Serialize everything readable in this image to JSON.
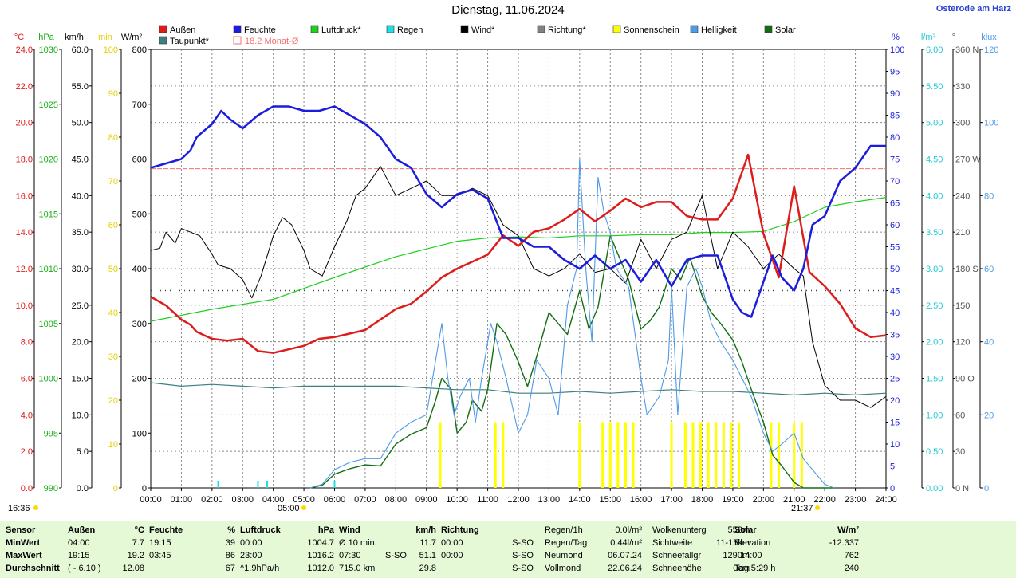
{
  "title": "Dienstag, 11.06.2024",
  "location": "Osterode am Harz",
  "time_marks": {
    "sunrise_label": "05:00",
    "sunset_label": "21:37",
    "now_label": "16:36"
  },
  "legend": [
    {
      "label": "Außen",
      "color": "#dd1c1c"
    },
    {
      "label": "Feuchte",
      "color": "#1c1cdd"
    },
    {
      "label": "Luftdruck*",
      "color": "#1ecf1e"
    },
    {
      "label": "Regen",
      "color": "#1ee0e0"
    },
    {
      "label": "Wind*",
      "color": "#000000"
    },
    {
      "label": "Richtung*",
      "color": "#808080"
    },
    {
      "label": "Sonnenschein",
      "color": "#ffff00"
    },
    {
      "label": "Helligkeit",
      "color": "#4f9ae6"
    },
    {
      "label": "Solar",
      "color": "#126e12"
    },
    {
      "label": "Taupunkt*",
      "color": "#3f7f7f"
    },
    {
      "label": "18.2 Monat-Ø",
      "color": "#f07070"
    }
  ],
  "axis_units": {
    "temp": "°C",
    "press": "hPa",
    "wind": "km/h",
    "min": "min",
    "solar": "W/m²",
    "hum": "%",
    "rain": "l/m²",
    "dir": "°",
    "lux": "klux"
  },
  "chart_data": {
    "type": "line",
    "title": "Dienstag, 11.06.2024",
    "x_label": "",
    "x_ticks": [
      "00:00",
      "01:00",
      "02:00",
      "03:00",
      "04:00",
      "05:00",
      "06:00",
      "07:00",
      "08:00",
      "09:00",
      "10:00",
      "11:00",
      "12:00",
      "13:00",
      "14:00",
      "15:00",
      "16:00",
      "17:00",
      "18:00",
      "19:00",
      "20:00",
      "21:00",
      "22:00",
      "23:00",
      "24:00"
    ],
    "x_range_hours": [
      0,
      24
    ],
    "grid": true,
    "y_axes": {
      "temp": {
        "unit": "°C",
        "range": [
          0,
          25
        ],
        "ticks": [
          "0.0",
          "2.0",
          "4.0",
          "6.0",
          "8.0",
          "10.0",
          "12.0",
          "14.0",
          "16.0",
          "18.0",
          "20.0",
          "22.0",
          "24.0"
        ]
      },
      "press": {
        "unit": "hPa",
        "range": [
          990,
          1030
        ],
        "ticks": [
          "990",
          "995",
          "1000",
          "1005",
          "1010",
          "1015",
          "1020",
          "1025",
          "1030"
        ]
      },
      "wind": {
        "unit": "km/h",
        "range": [
          0,
          60
        ],
        "ticks": [
          "0.0",
          "5.0",
          "10.0",
          "15.0",
          "20.0",
          "25.0",
          "30.0",
          "35.0",
          "40.0",
          "45.0",
          "50.0",
          "55.0",
          "60.0"
        ]
      },
      "minutes": {
        "unit": "min",
        "range": [
          0,
          100
        ],
        "ticks": [
          "0",
          "10",
          "20",
          "30",
          "40",
          "50",
          "60",
          "70",
          "80",
          "90",
          "100"
        ]
      },
      "solar": {
        "unit": "W/m²",
        "range": [
          0,
          800
        ],
        "ticks": [
          "0",
          "100",
          "200",
          "300",
          "400",
          "500",
          "600",
          "700",
          "800"
        ]
      },
      "hum": {
        "unit": "%",
        "range": [
          0,
          100
        ],
        "ticks": [
          "0",
          "5",
          "10",
          "15",
          "20",
          "25",
          "30",
          "35",
          "40",
          "45",
          "50",
          "55",
          "60",
          "65",
          "70",
          "75",
          "80",
          "85",
          "90",
          "95",
          "100"
        ]
      },
      "rain": {
        "unit": "l/m²",
        "range": [
          0,
          6
        ],
        "ticks": [
          "0.00",
          "0.50",
          "1.00",
          "1.50",
          "2.00",
          "2.50",
          "3.00",
          "3.50",
          "4.00",
          "4.50",
          "5.00",
          "5.50",
          "6.00"
        ]
      },
      "dir": {
        "unit": "°",
        "range": [
          0,
          360
        ],
        "ticks": [
          "0 N",
          "30",
          "60",
          "90 O",
          "120",
          "150",
          "180 S",
          "210",
          "240",
          "270 W",
          "300",
          "330",
          "360 N"
        ]
      },
      "lux": {
        "unit": "klux",
        "range": [
          0,
          120
        ],
        "ticks": [
          "0",
          "20",
          "40",
          "60",
          "80",
          "100",
          "120"
        ]
      }
    },
    "reference_lines": [
      {
        "name": "18.2 Monat-Ø",
        "axis": "temp",
        "value": 18.2
      },
      {
        "name": "",
        "axis": "hum",
        "value": 45
      }
    ],
    "series": [
      {
        "name": "Außen",
        "axis": "temp",
        "x": [
          0,
          0.5,
          1,
          1.3,
          1.5,
          2,
          2.5,
          3,
          3.5,
          4,
          4.5,
          5,
          5.5,
          6,
          6.5,
          7,
          7.5,
          8,
          8.5,
          9,
          9.5,
          10,
          10.5,
          11,
          11.5,
          12,
          12.5,
          13,
          13.5,
          14,
          14.5,
          15,
          15.5,
          16,
          16.5,
          17,
          17.5,
          18,
          18.5,
          19,
          19.5,
          20,
          20.5,
          21,
          21.5,
          22,
          22.5,
          23,
          23.5,
          24
        ],
        "y": [
          10.9,
          10.4,
          9.6,
          9.3,
          8.9,
          8.5,
          8.4,
          8.5,
          7.8,
          7.7,
          7.9,
          8.1,
          8.5,
          8.6,
          8.8,
          9.0,
          9.6,
          10.2,
          10.5,
          11.2,
          12.0,
          12.5,
          12.9,
          13.3,
          14.4,
          13.8,
          14.6,
          14.8,
          15.3,
          15.9,
          15.2,
          15.8,
          16.5,
          16.0,
          16.3,
          16.3,
          15.5,
          15.3,
          15.3,
          16.5,
          19.0,
          14.5,
          12.0,
          17.2,
          12.3,
          11.5,
          10.5,
          9.1,
          8.6,
          8.7
        ]
      },
      {
        "name": "Feuchte",
        "axis": "hum",
        "x": [
          0,
          0.5,
          1,
          1.3,
          1.5,
          2,
          2.3,
          2.6,
          3,
          3.5,
          4,
          4.5,
          5,
          5.5,
          6,
          6.5,
          7,
          7.5,
          8,
          8.5,
          9,
          9.5,
          10,
          10.5,
          11,
          11.5,
          12,
          12.5,
          13,
          13.5,
          14,
          14.5,
          15,
          15.5,
          16,
          16.5,
          17,
          17.5,
          18,
          18.5,
          19,
          19.3,
          19.6,
          20,
          20.3,
          20.6,
          21,
          21.3,
          21.6,
          22,
          22.5,
          23,
          23.5,
          24
        ],
        "y": [
          73,
          74,
          75,
          77,
          80,
          83,
          86,
          84,
          82,
          85,
          87,
          87,
          86,
          86,
          87,
          85,
          83,
          80,
          75,
          73,
          67,
          64,
          67,
          68,
          66,
          57,
          57,
          55,
          55,
          52,
          50,
          53,
          50,
          52,
          47,
          52,
          46,
          52,
          53,
          53,
          43,
          40,
          39,
          47,
          53,
          48,
          45,
          50,
          60,
          62,
          70,
          73,
          78,
          78
        ]
      },
      {
        "name": "Luftdruck*",
        "axis": "press",
        "x": [
          0,
          2,
          4,
          6,
          8,
          10,
          11,
          12,
          13,
          14,
          15,
          16,
          17,
          18,
          19,
          20,
          21,
          22,
          23,
          24
        ],
        "y": [
          1005.2,
          1006.3,
          1007.2,
          1009.2,
          1011.1,
          1012.5,
          1012.8,
          1012.9,
          1012.8,
          1013.0,
          1013.0,
          1013.1,
          1013.1,
          1013.3,
          1013.3,
          1013.4,
          1014.3,
          1015.6,
          1016.1,
          1016.5
        ]
      },
      {
        "name": "Regen",
        "axis": "rain",
        "x": [
          2.2,
          3.5,
          3.8,
          6.0
        ],
        "y": [
          0.1,
          0.1,
          0.1,
          0.1
        ]
      },
      {
        "name": "Wind*",
        "axis": "wind",
        "x": [
          0,
          0.3,
          0.5,
          0.8,
          1,
          1.3,
          1.6,
          2,
          2.2,
          2.6,
          3,
          3.3,
          3.6,
          4,
          4.3,
          4.6,
          5,
          5.2,
          5.6,
          6,
          6.4,
          6.7,
          7,
          7.5,
          8,
          8.5,
          9,
          9.5,
          10,
          10.5,
          11,
          11.5,
          12,
          12.5,
          13,
          13.5,
          14,
          14.5,
          15,
          15.5,
          16,
          16.5,
          17,
          17.5,
          18,
          18.5,
          19,
          19.5,
          20,
          20.5,
          21,
          21.3,
          21.6,
          22,
          22.5,
          23,
          23.5,
          24
        ],
        "y": [
          32.5,
          32.8,
          35,
          33.5,
          35.5,
          35,
          34.5,
          32,
          30.5,
          30,
          28.5,
          26,
          29,
          34.5,
          37,
          36,
          32.5,
          30,
          29,
          33,
          36.5,
          40,
          41,
          44,
          40,
          41,
          42,
          40,
          40,
          41,
          40,
          36,
          34.5,
          30,
          29,
          30,
          32,
          29.5,
          30,
          28,
          34,
          30,
          34,
          35,
          40,
          30,
          35,
          33,
          30,
          32,
          30,
          29,
          20,
          14,
          12,
          12,
          11,
          12.5
        ]
      },
      {
        "name": "Taupunkt*",
        "axis": "temp",
        "x": [
          0,
          1,
          2,
          3,
          4,
          5,
          6,
          7,
          8,
          9,
          10,
          11,
          12,
          13,
          14,
          15,
          16,
          17,
          18,
          19,
          20,
          21,
          22,
          23,
          24
        ],
        "y": [
          6.0,
          5.8,
          5.9,
          5.8,
          5.7,
          5.8,
          5.8,
          5.8,
          5.8,
          5.7,
          5.6,
          5.6,
          5.4,
          5.4,
          5.5,
          5.4,
          5.5,
          5.6,
          5.5,
          5.5,
          5.4,
          5.3,
          5.4,
          5.3,
          5.4
        ]
      },
      {
        "name": "Solar",
        "axis": "solar",
        "x": [
          5.2,
          5.6,
          6,
          6.5,
          7,
          7.5,
          8,
          8.5,
          9,
          9.3,
          9.5,
          9.8,
          10,
          10.3,
          10.5,
          10.8,
          11,
          11.3,
          11.6,
          12,
          12.3,
          12.6,
          13,
          13.3,
          13.6,
          14,
          14.3,
          14.6,
          15,
          15.3,
          15.6,
          16,
          16.3,
          16.6,
          17,
          17.3,
          17.6,
          18,
          18.3,
          18.6,
          19,
          19.3,
          19.6,
          20,
          20.3,
          20.6,
          21,
          21.3,
          21.6,
          22,
          22.3
        ],
        "y": [
          0,
          5,
          25,
          35,
          42,
          40,
          80,
          98,
          110,
          160,
          200,
          180,
          100,
          120,
          160,
          140,
          180,
          300,
          280,
          230,
          185,
          240,
          320,
          300,
          280,
          360,
          290,
          330,
          460,
          420,
          380,
          290,
          305,
          330,
          400,
          380,
          420,
          350,
          320,
          300,
          270,
          230,
          180,
          120,
          60,
          40,
          10,
          0,
          0,
          0,
          0
        ]
      },
      {
        "name": "Helligkeit",
        "axis": "lux",
        "x": [
          5.2,
          5.6,
          6,
          6.5,
          7,
          7.5,
          8,
          8.5,
          9,
          9.3,
          9.5,
          9.7,
          9.9,
          10.1,
          10.4,
          10.6,
          10.8,
          11.1,
          11.3,
          11.6,
          12,
          12.3,
          12.6,
          13,
          13.3,
          13.6,
          13.9,
          14,
          14.2,
          14.4,
          14.6,
          14.8,
          15,
          15.2,
          15.6,
          16,
          16.2,
          16.6,
          16.9,
          17,
          17.2,
          17.5,
          17.8,
          18,
          18.3,
          18.6,
          19,
          19.3,
          19.6,
          20,
          20.3,
          20.6,
          21,
          21.3,
          21.6,
          22,
          22.3
        ],
        "y": [
          0,
          1,
          5,
          7,
          8,
          8,
          15,
          18,
          20,
          35,
          45,
          30,
          20,
          25,
          30,
          18,
          30,
          45,
          40,
          30,
          15,
          20,
          35,
          30,
          20,
          50,
          60,
          90,
          60,
          40,
          85,
          75,
          70,
          60,
          55,
          30,
          20,
          25,
          35,
          55,
          20,
          55,
          60,
          55,
          45,
          40,
          35,
          30,
          25,
          15,
          10,
          12,
          15,
          8,
          5,
          1,
          0
        ]
      }
    ],
    "sunshine_bars": {
      "axis": "minutes",
      "x": [
        9.45,
        11.25,
        11.5,
        14.0,
        14.75,
        15.0,
        15.25,
        15.5,
        15.75,
        17.0,
        17.45,
        17.7,
        17.95,
        18.2,
        18.45,
        18.7,
        18.95,
        19.2,
        20.25,
        20.5,
        21.0,
        21.25
      ],
      "y": [
        15,
        15,
        15,
        15,
        15,
        15,
        15,
        15,
        15,
        15,
        15,
        15,
        15,
        15,
        15,
        15,
        15,
        15,
        15,
        15,
        15,
        15
      ]
    }
  },
  "stats": {
    "headers": {
      "sensor": "Sensor",
      "aussen": "Außen",
      "aussen_unit": "°C",
      "feuchte": "Feuchte",
      "feuchte_unit": "%",
      "luftdruck": "Luftdruck",
      "luftdruck_unit": "hPa",
      "wind": "Wind",
      "wind_unit": "km/h",
      "richtung": "Richtung",
      "solar": "Solar",
      "solar_unit": "W/m²"
    },
    "rows": [
      {
        "label": "MinWert",
        "aussen_time": "04:00",
        "aussen_val": "7.7",
        "feuchte_time": "19:15",
        "feuchte_val": "39",
        "druck_time": "00:00",
        "druck_val": "1004.7",
        "wind_time": "Ø 10 min.",
        "wind_dir": "",
        "wind_val": "11.7",
        "richt_time": "00:00",
        "richt_val": "S-SO",
        "solar_label": "Elevation",
        "solar_val": "-12.337"
      },
      {
        "label": "MaxWert",
        "aussen_time": "19:15",
        "aussen_val": "19.2",
        "feuchte_time": "03:45",
        "feuchte_val": "86",
        "druck_time": "23:00",
        "druck_val": "1016.2",
        "wind_time": "07:30",
        "wind_dir": "S-SO",
        "wind_val": "51.1",
        "richt_time": "00:00",
        "richt_val": "S-SO",
        "solar_label": "14:00",
        "solar_val": "762"
      },
      {
        "label": "Durchschnitt",
        "aussen_time": "( - 6.10 )",
        "aussen_val": "12.08",
        "feuchte_time": "",
        "feuchte_val": "67",
        "druck_time": "^1.9hPa/h",
        "druck_val": "1012.0",
        "wind_time": "715.0 km",
        "wind_dir": "",
        "wind_val": "29.8",
        "richt_time": "",
        "richt_val": "S-SO",
        "solar_label": "Tag:5:29 h",
        "solar_val": "240"
      }
    ],
    "misc": [
      [
        "Regen/1h",
        "0.0l/m²",
        "Wolkenunterg",
        "558m"
      ],
      [
        "Regen/Tag",
        "0.44l/m²",
        "Sichtweite",
        "11-15km"
      ],
      [
        "Neumond",
        "06.07.24",
        "Schneefallgr",
        "1290m"
      ],
      [
        "Vollmond",
        "22.06.24",
        "Schneehöhe",
        "0cm"
      ]
    ]
  }
}
